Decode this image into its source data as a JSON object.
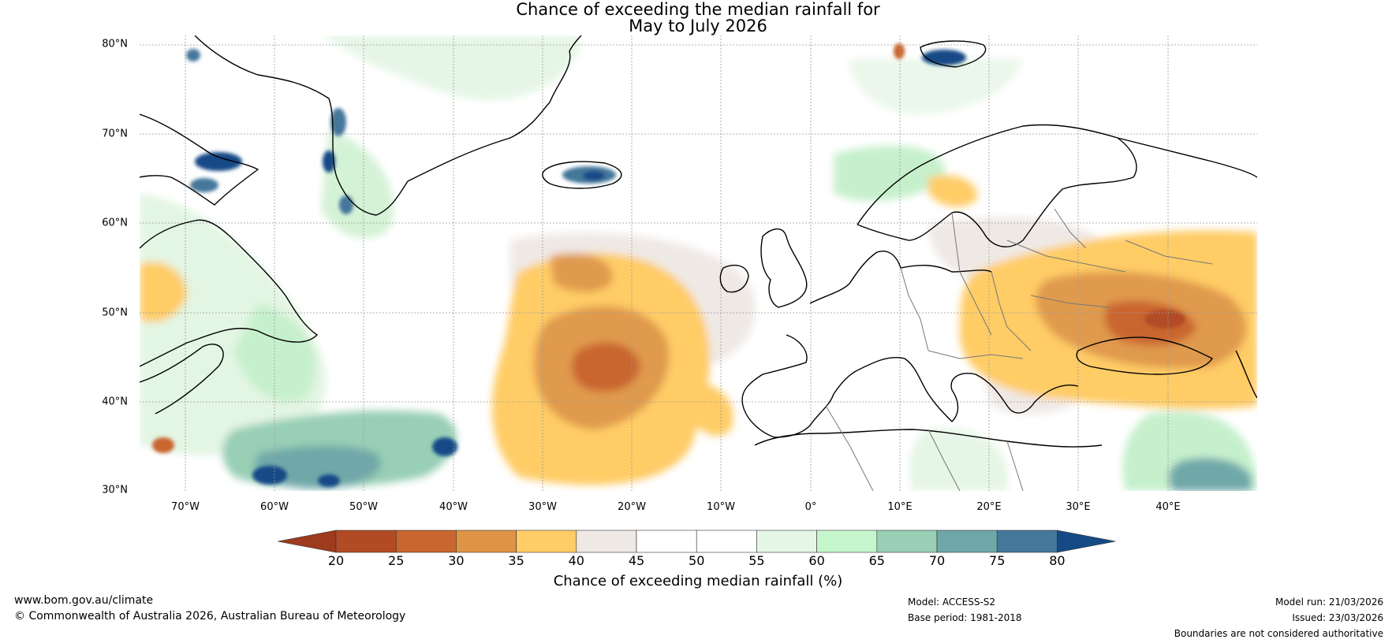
{
  "title": {
    "line1": "Chance of exceeding the median rainfall for",
    "line2": "May to July 2026"
  },
  "map": {
    "latitude_labels": [
      "80°N",
      "70°N",
      "60°N",
      "50°N",
      "40°N",
      "30°N"
    ],
    "longitude_labels": [
      "70°W",
      "60°W",
      "50°W",
      "40°W",
      "30°W",
      "20°W",
      "10°W",
      "0°",
      "10°E",
      "20°E",
      "30°E",
      "40°E"
    ],
    "extent": {
      "lon_min": -75,
      "lon_max": 50,
      "lat_min": 30,
      "lat_max": 81
    }
  },
  "colorbar": {
    "tick_labels": [
      "20",
      "25",
      "30",
      "35",
      "40",
      "45",
      "50",
      "55",
      "60",
      "65",
      "70",
      "75",
      "80"
    ],
    "colors": [
      "#9e3a1e",
      "#b24b25",
      "#c9652e",
      "#df9445",
      "#ffcc66",
      "#efe9e5",
      "#ffffff",
      "#ffffff",
      "#e6f6e6",
      "#c6f6cc",
      "#98cfb5",
      "#6fa7a9",
      "#45779b",
      "#154a86"
    ],
    "label": "Chance of exceeding median rainfall (%)"
  },
  "footer": {
    "website": "www.bom.gov.au/climate",
    "copyright": "© Commonwealth of Australia 2026, Australian Bureau of Meteorology",
    "model": "Model: ACCESS-S2",
    "base_period": "Base period: 1981-2018",
    "model_run": "Model run: 21/03/2026",
    "issued": "Issued: 23/03/2026",
    "disclaimer": "Boundaries are not considered authoritative"
  }
}
